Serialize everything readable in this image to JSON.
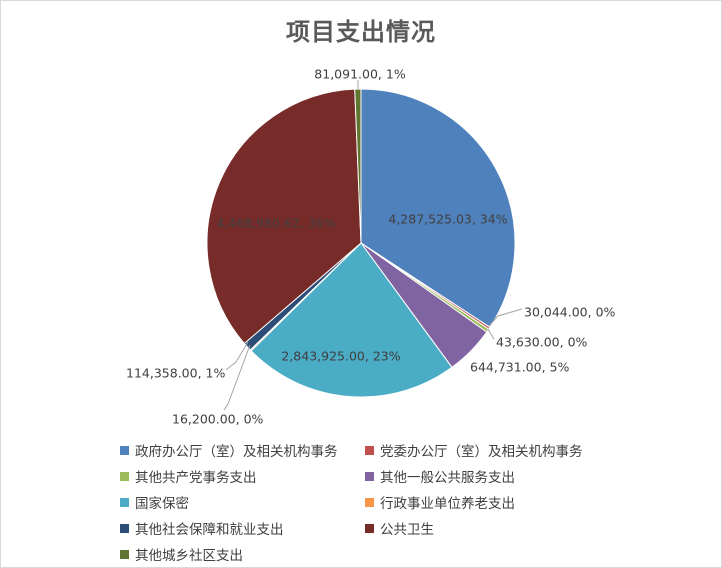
{
  "chart_data": {
    "type": "pie",
    "title": "项目支出情况",
    "colors": [
      "#4f81bd",
      "#c0504d",
      "#9bbb59",
      "#8064a2",
      "#4bacc6",
      "#f79646",
      "#2c4d75",
      "#772c2a",
      "#5f7530"
    ],
    "slices": [
      {
        "name": "政府办公厅（室）及相关机构事务",
        "value": 4287525.03,
        "label": "4,287,525.03, 34%"
      },
      {
        "name": "党委办公厅（室）及相关机构事务",
        "value": 30044.0,
        "label": "30,044.00, 0%"
      },
      {
        "name": "其他共产党事务支出",
        "value": 43630.0,
        "label": "43,630.00, 0%"
      },
      {
        "name": "其他一般公共服务支出",
        "value": 644731.0,
        "label": "644,731.00, 5%"
      },
      {
        "name": "国家保密",
        "value": 2843925.0,
        "label": "2,843,925.00, 23%"
      },
      {
        "name": "行政事业单位养老支出",
        "value": 16200.0,
        "label": "16,200.00, 0%"
      },
      {
        "name": "其他社会保障和就业支出",
        "value": 114358.0,
        "label": "114,358.00, 1%"
      },
      {
        "name": "公共卫生",
        "value": 4468980.62,
        "label": "4,468,980.62, 36%"
      },
      {
        "name": "其他城乡社区支出",
        "value": 81091.0,
        "label": "81,091.00, 1%"
      }
    ],
    "legend_position": "bottom"
  }
}
